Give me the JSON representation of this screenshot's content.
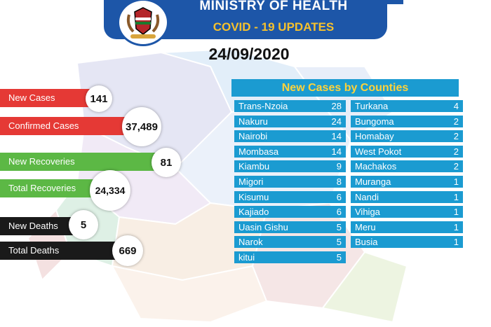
{
  "header": {
    "ministry": "MINISTRY OF HEALTH",
    "subtitle": "COVID - 19 UPDATES",
    "date": "24/09/2020"
  },
  "colors": {
    "header_blue": "#1d56a8",
    "subtitle_gold": "#f6c12d",
    "cases_red": "#e53935",
    "recoveries_green": "#5cb845",
    "deaths_black": "#1a1a1a",
    "table_blue": "#1b9bd1",
    "table_title_yellow": "#ffd23a"
  },
  "icons": {
    "emblem": "kenya-coat-of-arms-icon"
  },
  "stats": {
    "new_cases": {
      "label": "New Cases",
      "value": "141"
    },
    "confirmed_cases": {
      "label": "Confirmed Cases",
      "value": "37,489"
    },
    "new_recoveries": {
      "label": "New Recoveries",
      "value": "81"
    },
    "total_recoveries": {
      "label": "Total Recoveries",
      "value": "24,334"
    },
    "new_deaths": {
      "label": "New Deaths",
      "value": "5"
    },
    "total_deaths": {
      "label": "Total Deaths",
      "value": "669"
    }
  },
  "table": {
    "title": "New Cases by Counties",
    "left": [
      {
        "county": "Trans-Nzoia",
        "cases": "28"
      },
      {
        "county": "Nakuru",
        "cases": "24"
      },
      {
        "county": "Nairobi",
        "cases": "14"
      },
      {
        "county": "Mombasa",
        "cases": "14"
      },
      {
        "county": "Kiambu",
        "cases": "9"
      },
      {
        "county": "Migori",
        "cases": "8"
      },
      {
        "county": "Kisumu",
        "cases": "6"
      },
      {
        "county": "Kajiado",
        "cases": "6"
      },
      {
        "county": "Uasin Gishu",
        "cases": "5"
      },
      {
        "county": "Narok",
        "cases": "5"
      },
      {
        "county": "kitui",
        "cases": "5"
      }
    ],
    "right": [
      {
        "county": "Turkana",
        "cases": "4"
      },
      {
        "county": "Bungoma",
        "cases": "2"
      },
      {
        "county": "Homabay",
        "cases": "2"
      },
      {
        "county": "West Pokot",
        "cases": "2"
      },
      {
        "county": "Machakos",
        "cases": "2"
      },
      {
        "county": "Muranga",
        "cases": "1"
      },
      {
        "county": "Nandi",
        "cases": "1"
      },
      {
        "county": "Vihiga",
        "cases": "1"
      },
      {
        "county": "Meru",
        "cases": "1"
      },
      {
        "county": "Busia",
        "cases": "1"
      }
    ]
  }
}
